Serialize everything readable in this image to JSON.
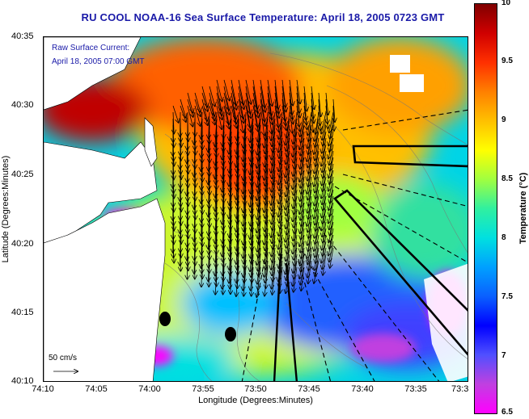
{
  "title": "RU COOL  NOAA-16  Sea Surface Temperature:  April 18, 2005 0723 GMT",
  "overlay": {
    "line1": "Raw Surface Current:",
    "line2": "April 18, 2005 07:00 GMT",
    "scale_label": "50 cm/s"
  },
  "axes": {
    "xlabel": "Longitude (Degrees:Minutes)",
    "ylabel": "Latitude (Degrees:Minutes)",
    "xticks": [
      "74:10",
      "74:05",
      "74:00",
      "73:55",
      "73:50",
      "73:45",
      "73:40",
      "73:35",
      "73:3"
    ],
    "yticks": [
      "40:35",
      "40:30",
      "40:25",
      "40:20",
      "40:15",
      "40:10"
    ]
  },
  "colorbar": {
    "label": "Temperature (°C)",
    "ticks": [
      "10",
      "9.5",
      "9",
      "8.5",
      "8",
      "7.5",
      "7",
      "6.5"
    ],
    "min": 6.5,
    "max": 10,
    "colors": [
      "#ff00ff",
      "#c040e0",
      "#5050ff",
      "#0000ff",
      "#0a60ff",
      "#00a0ff",
      "#00e0e0",
      "#30f0a0",
      "#a0ff40",
      "#ffff00",
      "#ffc000",
      "#ff8000",
      "#ff3000",
      "#d00000",
      "#800000"
    ]
  },
  "map_features": {
    "land_color": "#ffffff",
    "water_base_color": "#00d8e8"
  }
}
